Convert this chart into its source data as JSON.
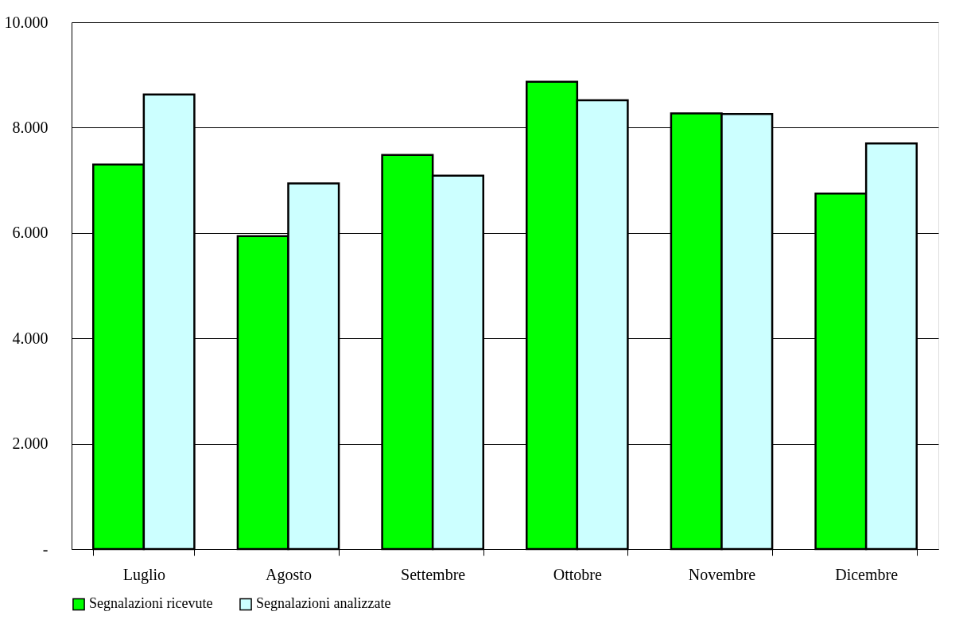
{
  "chart_data": {
    "type": "bar",
    "categories": [
      "Luglio",
      "Agosto",
      "Settembre",
      "Ottobre",
      "Novembre",
      "Dicembre"
    ],
    "series": [
      {
        "name": "Segnalazioni ricevute",
        "color": "#00ff00",
        "values": [
          7300,
          5940,
          7480,
          8870,
          8270,
          6750
        ]
      },
      {
        "name": "Segnalazioni analizzate",
        "color": "#ccffff",
        "values": [
          8630,
          6940,
          7090,
          8520,
          8260,
          7700
        ]
      }
    ],
    "ylim": [
      0,
      10000
    ],
    "yticks": [
      {
        "value": 0,
        "label": "-"
      },
      {
        "value": 2000,
        "label": "2.000"
      },
      {
        "value": 4000,
        "label": "4.000"
      },
      {
        "value": 6000,
        "label": "6.000"
      },
      {
        "value": 8000,
        "label": "8.000"
      },
      {
        "value": 10000,
        "label": "10.000"
      }
    ],
    "grid": "y",
    "legend": "bottom"
  }
}
